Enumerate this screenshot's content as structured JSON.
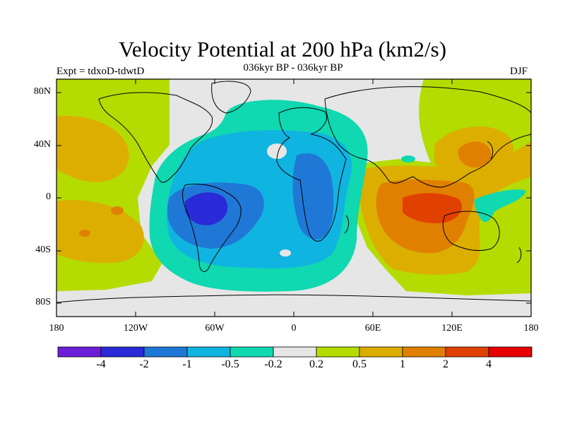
{
  "title": "Velocity Potential at 200 hPa (km2/s)",
  "subtitle": "036kyr BP - 036kyr BP",
  "left_label": "Expt = tdxoD-tdwtD",
  "right_label": "DJF",
  "y_axis_labels": [
    "80N",
    "40N",
    "0",
    "40S",
    "80S"
  ],
  "x_axis_labels": [
    "180",
    "120W",
    "60W",
    "0",
    "60E",
    "120E",
    "180"
  ],
  "colorbar": {
    "labels": [
      "-4",
      "-2",
      "-1",
      "-0.5",
      "-0.2",
      "0.2",
      "0.5",
      "1",
      "2",
      "4"
    ],
    "colors": [
      "#6a1fd6",
      "#2a2ad8",
      "#1f78d6",
      "#10b4e0",
      "#10d8b0",
      "#e6e6e6",
      "#b4dc00",
      "#dcae00",
      "#e08000",
      "#e04000",
      "#e60000"
    ]
  }
}
